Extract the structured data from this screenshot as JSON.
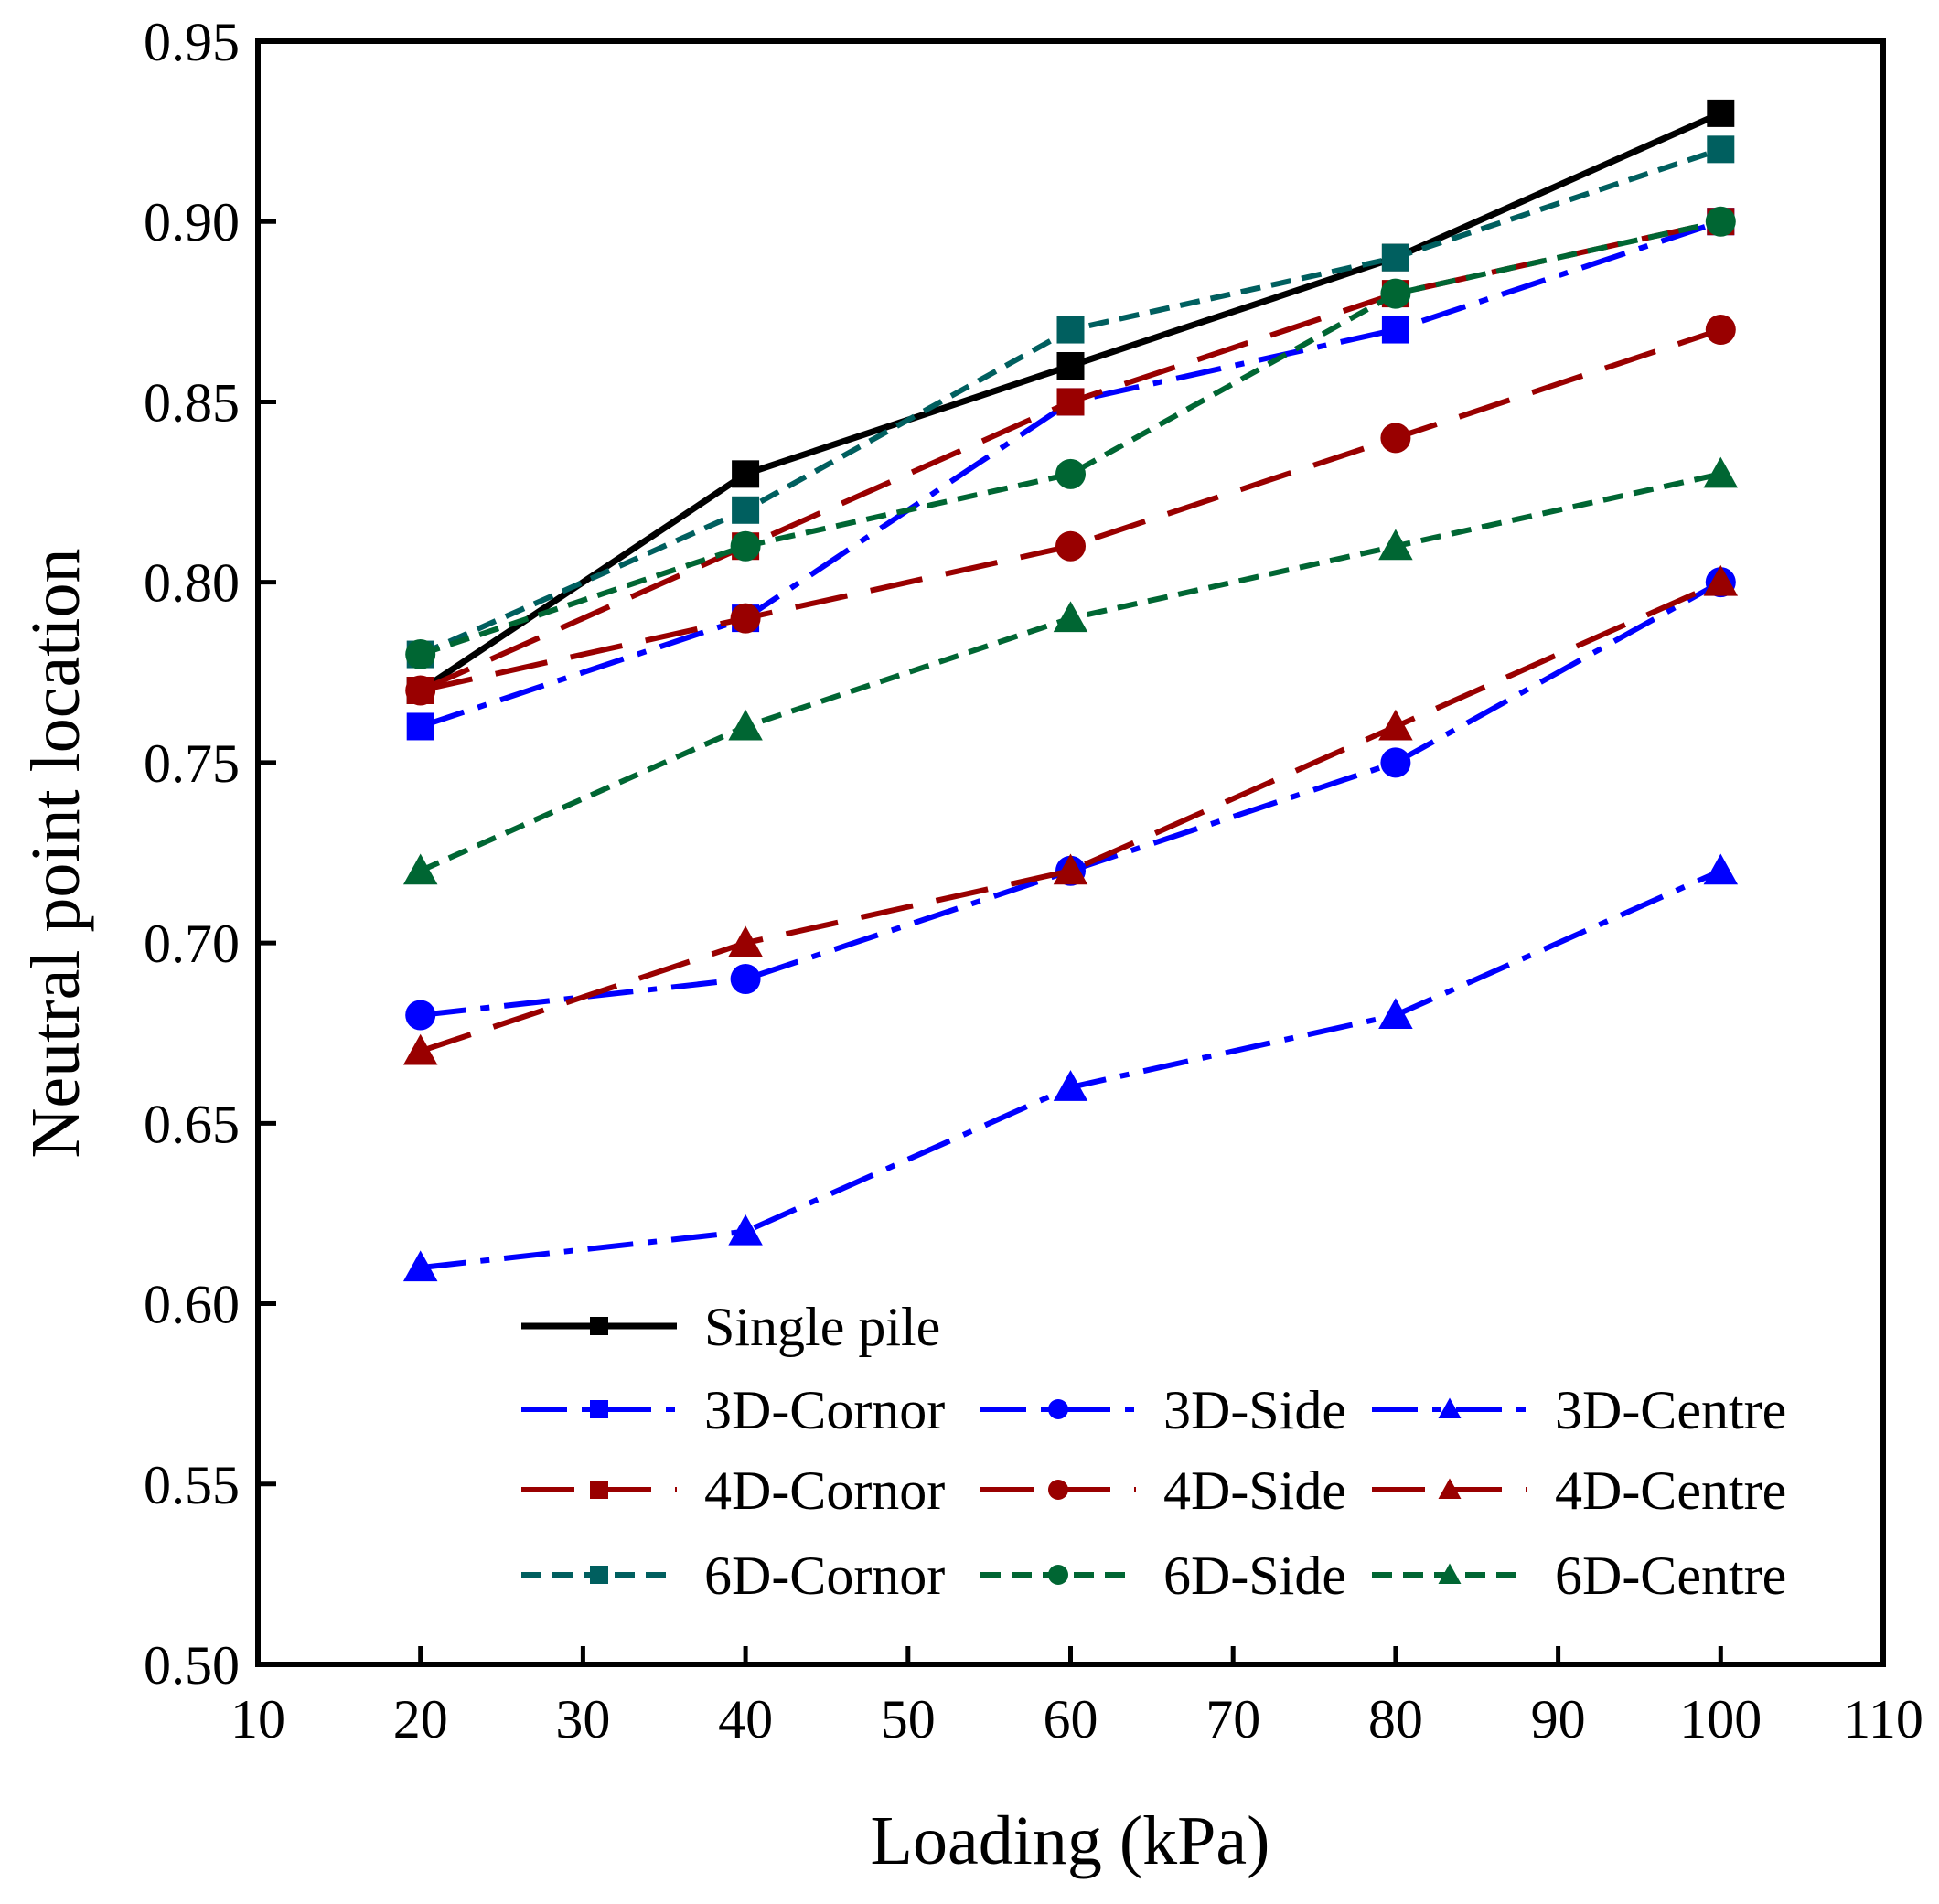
{
  "chart_data": {
    "type": "line",
    "title": "",
    "xlabel": "Loading (kPa)",
    "ylabel": "Neutral point location",
    "xlim": [
      10,
      110
    ],
    "ylim": [
      0.5,
      0.95
    ],
    "xticks": [
      "10",
      "20",
      "30",
      "40",
      "50",
      "60",
      "70",
      "80",
      "90",
      "100",
      "110"
    ],
    "yticks": [
      "0.50",
      "0.55",
      "0.60",
      "0.65",
      "0.70",
      "0.75",
      "0.80",
      "0.85",
      "0.90",
      "0.95"
    ],
    "grid": false,
    "legend_position": "bottom-center",
    "x": [
      20,
      40,
      60,
      80,
      100
    ],
    "series": [
      {
        "name": "Single pile",
        "values": [
          0.77,
          0.83,
          0.86,
          0.89,
          0.93
        ],
        "color": "#000000",
        "dash": "solid",
        "marker": "square"
      },
      {
        "name": "3D-Cornor",
        "values": [
          0.76,
          0.79,
          0.85,
          0.87,
          0.9
        ],
        "color": "#0000ff",
        "dash": "dashdot",
        "marker": "square"
      },
      {
        "name": "3D-Side",
        "values": [
          0.68,
          0.69,
          0.72,
          0.75,
          0.8
        ],
        "color": "#0000ff",
        "dash": "dashdot",
        "marker": "circle"
      },
      {
        "name": "3D-Centre",
        "values": [
          0.61,
          0.62,
          0.66,
          0.68,
          0.72
        ],
        "color": "#0000ff",
        "dash": "dashdot",
        "marker": "triangle"
      },
      {
        "name": "4D-Cornor",
        "values": [
          0.77,
          0.81,
          0.85,
          0.88,
          0.9
        ],
        "color": "#990000",
        "dash": "dash",
        "marker": "square"
      },
      {
        "name": "4D-Side",
        "values": [
          0.77,
          0.79,
          0.81,
          0.84,
          0.87
        ],
        "color": "#990000",
        "dash": "dash",
        "marker": "circle"
      },
      {
        "name": "4D-Centre",
        "values": [
          0.67,
          0.7,
          0.72,
          0.76,
          0.8
        ],
        "color": "#990000",
        "dash": "dash",
        "marker": "triangle"
      },
      {
        "name": "6D-Cornor",
        "values": [
          0.78,
          0.82,
          0.87,
          0.89,
          0.92
        ],
        "color": "#005f5f",
        "dash": "shortdash",
        "marker": "square"
      },
      {
        "name": "6D-Side",
        "values": [
          0.78,
          0.81,
          0.83,
          0.88,
          0.9
        ],
        "color": "#006633",
        "dash": "shortdash",
        "marker": "circle"
      },
      {
        "name": "6D-Centre",
        "values": [
          0.72,
          0.76,
          0.79,
          0.81,
          0.83
        ],
        "color": "#006633",
        "dash": "shortdash",
        "marker": "triangle"
      }
    ]
  }
}
